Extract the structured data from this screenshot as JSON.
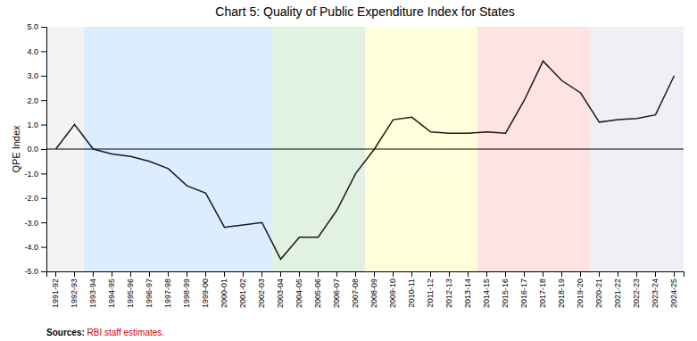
{
  "chart_data": {
    "type": "line",
    "title": "Chart 5: Quality of Public Expenditure Index for States",
    "y_label": "QPE Index",
    "color": "#1a1a1a",
    "categories": [
      "1991-92",
      "1992-93",
      "1993-94",
      "1994-95",
      "1995-96",
      "1996-97",
      "1997-98",
      "1998-99",
      "1999-00",
      "2000-01",
      "2001-02",
      "2002-03",
      "2003-04",
      "2004-05",
      "2005-06",
      "2006-07",
      "2007-08",
      "2008-09",
      "2009-10",
      "2010-11",
      "2011-12",
      "2012-13",
      "2013-14",
      "2014-15",
      "2015-16",
      "2016-17",
      "2017-18",
      "2018-19",
      "2019-20",
      "2020-21",
      "2021-22",
      "2022-23",
      "2023-24",
      "2024-25"
    ],
    "values": [
      0.0,
      1.0,
      0.0,
      -0.2,
      -0.3,
      -0.5,
      -0.8,
      -1.5,
      -1.8,
      -3.2,
      -3.1,
      -3.0,
      -4.5,
      -3.6,
      -3.6,
      -2.5,
      -1.0,
      0.0,
      1.2,
      1.3,
      0.7,
      0.65,
      0.65,
      0.7,
      0.65,
      2.0,
      3.6,
      2.8,
      2.3,
      1.1,
      1.2,
      1.25,
      1.4,
      3.0
    ],
    "ylim": [
      -5.0,
      5.0
    ],
    "yticks": [
      {
        "value": -5.0,
        "label": "-5.0"
      },
      {
        "value": -4.0,
        "label": "-4.0"
      },
      {
        "value": -3.0,
        "label": "-3.0"
      },
      {
        "value": -2.0,
        "label": "-2.0"
      },
      {
        "value": -1.0,
        "label": "-1.0"
      },
      {
        "value": 0.0,
        "label": "0.0"
      },
      {
        "value": 1.0,
        "label": "1.0"
      },
      {
        "value": 2.0,
        "label": "2.0"
      },
      {
        "value": 3.0,
        "label": "3.0"
      },
      {
        "value": 4.0,
        "label": "4.0"
      },
      {
        "value": 5.0,
        "label": "5.0"
      }
    ],
    "grid": false,
    "shaded_regions": [
      {
        "start": "1991-92",
        "end": "1992-93",
        "color": "#eeeeee"
      },
      {
        "start": "1993-94",
        "end": "2002-03",
        "color": "#cce5ff"
      },
      {
        "start": "2003-04",
        "end": "2007-08",
        "color": "#d6ecd6"
      },
      {
        "start": "2008-09",
        "end": "2013-14",
        "color": "#ffffcc"
      },
      {
        "start": "2014-15",
        "end": "2019-20",
        "color": "#ffd6d6"
      },
      {
        "start": "2020-21",
        "end": "2024-25",
        "color": "#ede8f0"
      }
    ],
    "source": {
      "label": "Sources:",
      "text": " RBI staff estimates.",
      "color": "#cc0000"
    }
  }
}
